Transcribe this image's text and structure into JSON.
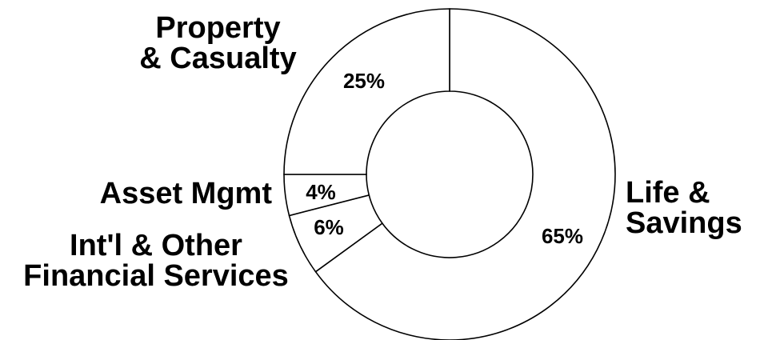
{
  "chart_data": {
    "type": "pie",
    "style": "donut",
    "slices": [
      {
        "name": "Life & Savings",
        "lines": [
          "Life &",
          "Savings"
        ],
        "value": 65,
        "label": "65%"
      },
      {
        "name": "Int'l & Other Financial Services",
        "lines": [
          "Int'l & Other",
          "Financial Services"
        ],
        "value": 6,
        "label": "6%"
      },
      {
        "name": "Asset Mgmt",
        "lines": [
          "Asset Mgmt"
        ],
        "value": 4,
        "label": "4%"
      },
      {
        "name": "Property & Casualty",
        "lines": [
          "Property",
          "& Casualty"
        ],
        "value": 25,
        "label": "25%"
      }
    ],
    "start_angle": "12 o'clock",
    "direction": "clockwise",
    "colors": {
      "fill": "#ffffff",
      "stroke": "#000000"
    },
    "legend": "none"
  }
}
